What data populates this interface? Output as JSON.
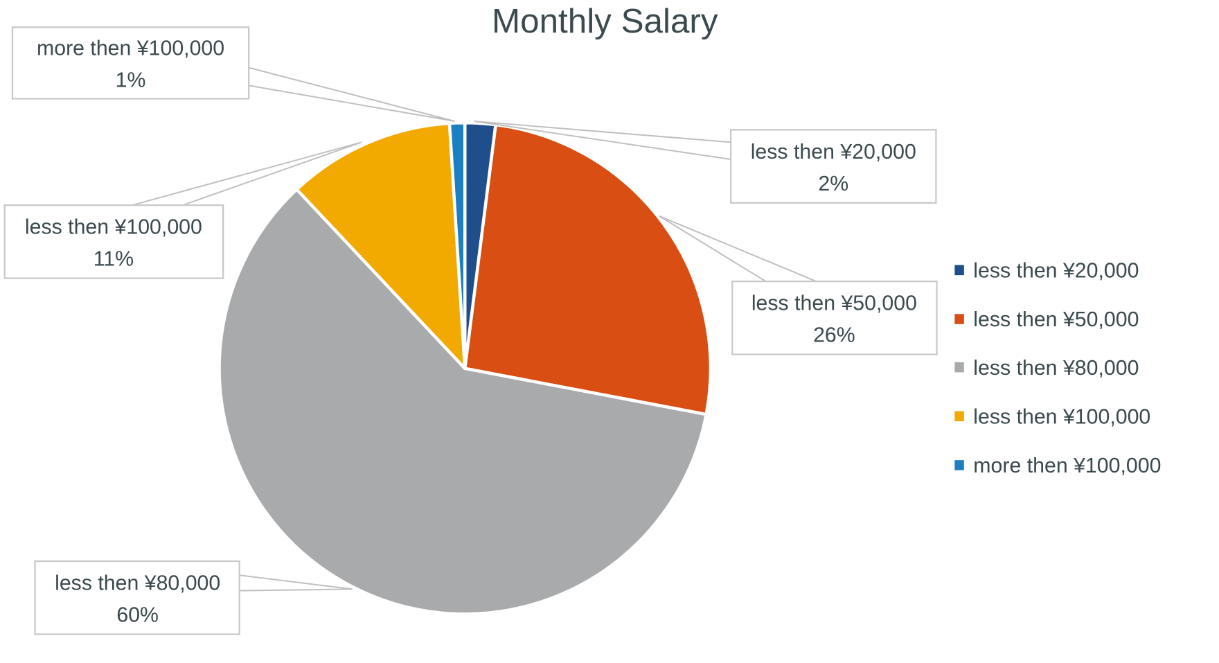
{
  "chart_data": {
    "type": "pie",
    "title": "Monthly Salary",
    "start_angle_deg": 0,
    "direction": "clockwise",
    "legend_position": "right",
    "slices": [
      {
        "label": "less then ¥20,000",
        "value": 2,
        "pct_label": "2%",
        "color": "#1f4e8c"
      },
      {
        "label": "less then ¥50,000",
        "value": 26,
        "pct_label": "26%",
        "color": "#d94f13"
      },
      {
        "label": "less then ¥80,000",
        "value": 60,
        "pct_label": "60%",
        "color": "#a9aaab"
      },
      {
        "label": "less then ¥100,000",
        "value": 11,
        "pct_label": "11%",
        "color": "#f2a900"
      },
      {
        "label": "more then ¥100,000",
        "value": 1,
        "pct_label": "1%",
        "color": "#1b7fc1"
      }
    ]
  }
}
